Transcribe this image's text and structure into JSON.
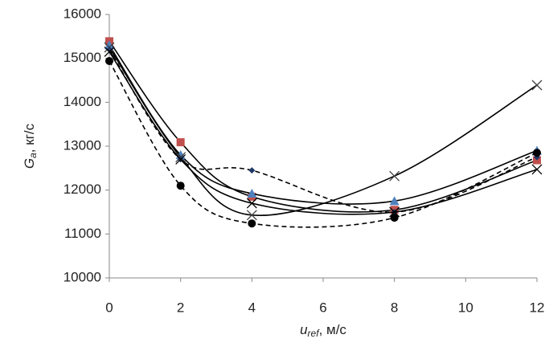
{
  "chart_data": {
    "type": "line",
    "x_label": {
      "main": "u",
      "sub": "ref",
      "unit": ", м/с"
    },
    "y_label": {
      "main": "G",
      "sub": "a",
      "unit": ", кг/с"
    },
    "x": [
      0,
      2,
      4,
      8,
      12
    ],
    "xlim": [
      0,
      12
    ],
    "xticks": [
      0,
      2,
      4,
      6,
      8,
      10,
      12
    ],
    "ylim": [
      10000,
      16000
    ],
    "yticks": [
      10000,
      11000,
      12000,
      13000,
      14000,
      15000,
      16000
    ],
    "grid": false,
    "series": [
      {
        "color": "#c0504d",
        "marker": "square",
        "dash": false,
        "values": [
          15390,
          13090,
          11850,
          11550,
          12680
        ]
      },
      {
        "color": "#4f81bd",
        "marker": "triangle",
        "dash": false,
        "values": [
          15300,
          12800,
          11920,
          11750,
          12900
        ]
      },
      {
        "color": "#404040",
        "marker": "x",
        "dash": false,
        "values": [
          15250,
          12750,
          11430,
          12320,
          14390
        ]
      },
      {
        "color": "#1f3864",
        "marker": "diamond",
        "dash": true,
        "values": [
          15200,
          12700,
          12450,
          11500,
          12750
        ]
      },
      {
        "color": "#000000",
        "marker": "circle",
        "dash": true,
        "values": [
          14940,
          12100,
          11240,
          11370,
          12850
        ]
      },
      {
        "color": "#000000",
        "marker": "x",
        "dash": false,
        "values": [
          15150,
          12700,
          11700,
          11500,
          12470
        ]
      }
    ]
  }
}
